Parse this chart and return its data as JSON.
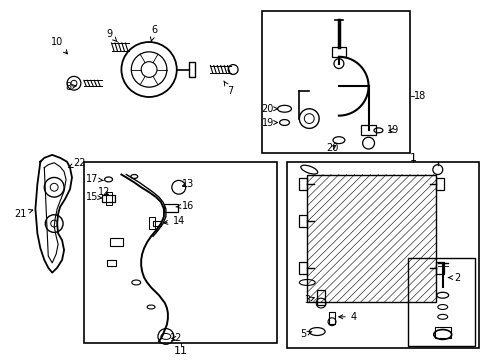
{
  "bg_color": "#ffffff",
  "line_color": "#000000",
  "font_size": 7,
  "fig_width": 4.89,
  "fig_height": 3.6,
  "dpi": 100
}
